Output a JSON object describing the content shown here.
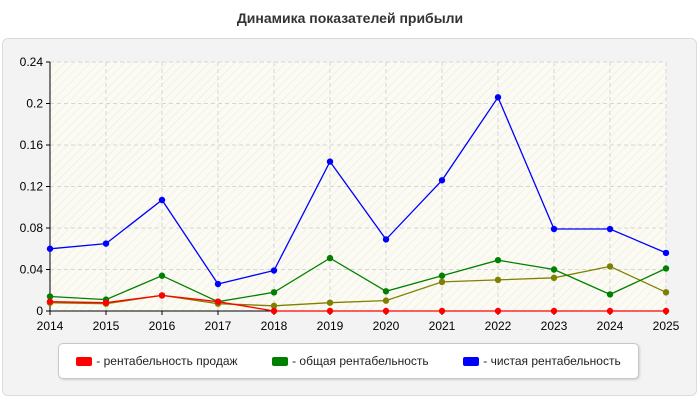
{
  "chart_data": {
    "type": "line",
    "title": "Динамика показателей прибыли",
    "x": [
      "2014",
      "2015",
      "2016",
      "2017",
      "2018",
      "2019",
      "2020",
      "2021",
      "2022",
      "2023",
      "2024",
      "2025"
    ],
    "y_ticks": [
      "0",
      "0.04",
      "0.08",
      "0.12",
      "0.16",
      "0.2",
      "0.24"
    ],
    "ylim": [
      0,
      0.24
    ],
    "grid": true,
    "legend_position": "bottom",
    "series": [
      {
        "name": "- рентабельность продаж",
        "color": "#ff0000",
        "in_legend": true,
        "values": [
          0.009,
          0.008,
          0.015,
          0.009,
          0.0,
          0.0,
          0.0,
          0.0,
          0.0,
          0.0,
          0.0,
          0.0
        ]
      },
      {
        "name": "- общая рентабельность",
        "color": "#008000",
        "in_legend": true,
        "values": [
          0.014,
          0.011,
          0.034,
          0.009,
          0.018,
          0.051,
          0.019,
          0.034,
          0.049,
          0.04,
          0.016,
          0.041
        ]
      },
      {
        "name": "- чистая рентабельность",
        "color": "#0000ff",
        "in_legend": true,
        "values": [
          0.06,
          0.065,
          0.107,
          0.026,
          0.039,
          0.144,
          0.069,
          0.126,
          0.206,
          0.079,
          0.079,
          0.056
        ]
      },
      {
        "name": "",
        "color": "#808000",
        "in_legend": false,
        "values": [
          0.008,
          0.007,
          0.015,
          0.007,
          0.005,
          0.008,
          0.01,
          0.028,
          0.03,
          0.032,
          0.043,
          0.018
        ]
      }
    ]
  }
}
